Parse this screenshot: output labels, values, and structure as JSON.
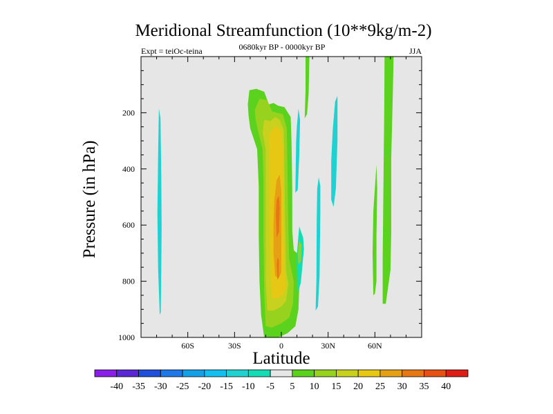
{
  "chart_data": {
    "type": "contour",
    "title": "Meridional Streamfunction (10**9kg/m-2)",
    "subtitle": "0680kyr BP - 0000kyr BP",
    "left_annotation": "Expt = teiOc-teina",
    "right_annotation": "JJA",
    "xlabel": "Latitude",
    "ylabel": "Pressure (in hPa)",
    "xlim": [
      -90,
      90
    ],
    "ylim": [
      1000,
      0
    ],
    "x_ticks": [
      {
        "value": -60,
        "label": "60S"
      },
      {
        "value": -30,
        "label": "30S"
      },
      {
        "value": 0,
        "label": "0"
      },
      {
        "value": 30,
        "label": "30N"
      },
      {
        "value": 60,
        "label": "60N"
      }
    ],
    "y_ticks": [
      {
        "value": 200,
        "label": "200"
      },
      {
        "value": 400,
        "label": "400"
      },
      {
        "value": 600,
        "label": "600"
      },
      {
        "value": 800,
        "label": "800"
      },
      {
        "value": 1000,
        "label": "1000"
      }
    ],
    "colorbar": {
      "labels": [
        "-40",
        "-35",
        "-30",
        "-25",
        "-20",
        "-15",
        "-10",
        "-5",
        "5",
        "10",
        "15",
        "20",
        "25",
        "30",
        "35",
        "40"
      ],
      "colors": [
        "#8a1ee6",
        "#5a28d2",
        "#1e50dc",
        "#1e78e6",
        "#14a0e6",
        "#14bef0",
        "#1ed2d2",
        "#14dcb4",
        "#e6e6e6",
        "#5ad21e",
        "#96d21e",
        "#c8d21e",
        "#e6c814",
        "#e6a014",
        "#e67814",
        "#e65014",
        "#dc1e14"
      ]
    },
    "regions": [
      {
        "name": "contour-fill-sh-high-lat",
        "level": "-10",
        "color": "#1ed2d2",
        "points": [
          [
            -78,
            920
          ],
          [
            -79,
            760
          ],
          [
            -79.5,
            560
          ],
          [
            -79,
            340
          ],
          [
            -78.5,
            185
          ],
          [
            -77.5,
            220
          ],
          [
            -77,
            420
          ],
          [
            -76.8,
            610
          ],
          [
            -77,
            760
          ],
          [
            -77.3,
            910
          ]
        ]
      },
      {
        "name": "contour-fill-eq-5",
        "level": "5",
        "color": "#5ad21e",
        "points": [
          [
            -11,
            1000
          ],
          [
            -13,
            920
          ],
          [
            -14,
            800
          ],
          [
            -14.5,
            640
          ],
          [
            -14.5,
            460
          ],
          [
            -15.5,
            330
          ],
          [
            -20,
            255
          ],
          [
            -21,
            210
          ],
          [
            -21.5,
            170
          ],
          [
            -20.5,
            120
          ],
          [
            -16,
            115
          ],
          [
            -11,
            125
          ],
          [
            -8,
            170
          ],
          [
            -5,
            165
          ],
          [
            -2,
            175
          ],
          [
            2,
            180
          ],
          [
            6,
            215
          ],
          [
            6.5,
            300
          ],
          [
            7,
            470
          ],
          [
            7,
            620
          ],
          [
            8,
            690
          ],
          [
            10,
            700
          ],
          [
            14,
            640
          ],
          [
            12,
            720
          ],
          [
            11.5,
            820
          ],
          [
            11,
            900
          ],
          [
            9,
            960
          ],
          [
            4,
            985
          ],
          [
            -2,
            1000
          ],
          [
            -8,
            1005
          ]
        ]
      },
      {
        "name": "contour-fill-eq-10",
        "level": "10",
        "color": "#96d21e",
        "points": [
          [
            -10,
            960
          ],
          [
            -11,
            840
          ],
          [
            -11.5,
            640
          ],
          [
            -11.5,
            440
          ],
          [
            -12,
            330
          ],
          [
            -15,
            265
          ],
          [
            -16.5,
            225
          ],
          [
            -17,
            190
          ],
          [
            -14,
            150
          ],
          [
            -9,
            155
          ],
          [
            -6,
            195
          ],
          [
            -3,
            200
          ],
          [
            1,
            205
          ],
          [
            3.5,
            255
          ],
          [
            4,
            420
          ],
          [
            4.5,
            600
          ],
          [
            5,
            720
          ],
          [
            6.5,
            760
          ],
          [
            8,
            800
          ],
          [
            7.5,
            880
          ],
          [
            5,
            930
          ],
          [
            0,
            950
          ],
          [
            -6,
            965
          ]
        ]
      },
      {
        "name": "contour-fill-eq-15",
        "level": "15",
        "color": "#c8d21e",
        "points": [
          [
            -9,
            905
          ],
          [
            -10,
            800
          ],
          [
            -10,
            620
          ],
          [
            -10,
            450
          ],
          [
            -10,
            330
          ],
          [
            -12,
            270
          ],
          [
            -11,
            225
          ],
          [
            -7,
            230
          ],
          [
            -4,
            215
          ],
          [
            -1,
            225
          ],
          [
            1.5,
            260
          ],
          [
            2,
            420
          ],
          [
            2.5,
            620
          ],
          [
            3,
            760
          ],
          [
            4.5,
            810
          ],
          [
            3,
            870
          ],
          [
            0,
            890
          ],
          [
            -5,
            905
          ]
        ]
      },
      {
        "name": "contour-fill-eq-20",
        "level": "20",
        "color": "#e6c814",
        "points": [
          [
            -6,
            860
          ],
          [
            -7,
            760
          ],
          [
            -7.5,
            620
          ],
          [
            -7.5,
            460
          ],
          [
            -7.5,
            330
          ],
          [
            -8,
            280
          ],
          [
            -4,
            245
          ],
          [
            0,
            265
          ],
          [
            1,
            340
          ],
          [
            1,
            480
          ],
          [
            1.5,
            640
          ],
          [
            2,
            760
          ],
          [
            3,
            820
          ],
          [
            1,
            850
          ],
          [
            -2,
            860
          ]
        ]
      },
      {
        "name": "contour-fill-eq-25",
        "level": "25",
        "color": "#e6a014",
        "points": [
          [
            -4,
            780
          ],
          [
            -5,
            700
          ],
          [
            -5,
            600
          ],
          [
            -4.5,
            510
          ],
          [
            -3,
            440
          ],
          [
            -1,
            420
          ],
          [
            0,
            480
          ],
          [
            0,
            580
          ],
          [
            0,
            700
          ],
          [
            0,
            770
          ],
          [
            -2,
            790
          ]
        ]
      },
      {
        "name": "contour-fill-eq-30",
        "level": "30",
        "color": "#e67814",
        "points": [
          [
            -3,
            645
          ],
          [
            -3.5,
            560
          ],
          [
            -3,
            510
          ],
          [
            -1.5,
            495
          ],
          [
            -1,
            540
          ],
          [
            -1.5,
            625
          ]
        ]
      },
      {
        "name": "contour-fill-eq-30b",
        "level": "30",
        "color": "#e67814",
        "points": [
          [
            -2.5,
            795
          ],
          [
            -3,
            740
          ],
          [
            -2.5,
            715
          ],
          [
            -1.5,
            725
          ],
          [
            -1.5,
            785
          ]
        ]
      },
      {
        "name": "contour-fill-eq-near",
        "level": "-5",
        "color": "#14dcb4",
        "points": [
          [
            10,
            700
          ],
          [
            11.5,
            605
          ],
          [
            14,
            645
          ],
          [
            14.5,
            685
          ],
          [
            12.5,
            805
          ],
          [
            10.5,
            845
          ]
        ]
      },
      {
        "name": "contour-fill-eq-near-b",
        "level": "10",
        "color": "#96d21e",
        "points": [
          [
            10.5,
            700
          ],
          [
            11.5,
            655
          ],
          [
            13,
            670
          ],
          [
            12.5,
            730
          ],
          [
            11,
            740
          ]
        ]
      },
      {
        "name": "contour-fill-high-strip-left",
        "level": "-10",
        "color": "#1ed2d2",
        "points": [
          [
            9,
            485
          ],
          [
            9.5,
            300
          ],
          [
            10,
            245
          ],
          [
            11,
            185
          ],
          [
            12,
            225
          ],
          [
            11.5,
            355
          ],
          [
            10.5,
            475
          ]
        ]
      },
      {
        "name": "contour-fill-high-strip-mid",
        "level": "5",
        "color": "#5ad21e",
        "points": [
          [
            15,
            220
          ],
          [
            15.5,
            120
          ],
          [
            15.5,
            0
          ],
          [
            18,
            0
          ],
          [
            17.5,
            130
          ],
          [
            16.5,
            205
          ]
        ]
      },
      {
        "name": "contour-fill-nh-20",
        "level": "-10",
        "color": "#1ed2d2",
        "points": [
          [
            22,
            905
          ],
          [
            22.5,
            790
          ],
          [
            22.7,
            580
          ],
          [
            23,
            470
          ],
          [
            24,
            430
          ],
          [
            25,
            460
          ],
          [
            25,
            560
          ],
          [
            24.5,
            780
          ],
          [
            23.5,
            890
          ]
        ]
      },
      {
        "name": "contour-fill-nh-30",
        "level": "-10",
        "color": "#1ed2d2",
        "points": [
          [
            32,
            510
          ],
          [
            32,
            370
          ],
          [
            33,
            260
          ],
          [
            34.5,
            160
          ],
          [
            36,
            140
          ],
          [
            36,
            300
          ],
          [
            35,
            470
          ],
          [
            33.5,
            535
          ]
        ]
      },
      {
        "name": "contour-fill-nh-60a",
        "level": "5",
        "color": "#5ad21e",
        "points": [
          [
            59,
            850
          ],
          [
            58.5,
            700
          ],
          [
            59,
            550
          ],
          [
            60,
            470
          ],
          [
            61,
            385
          ],
          [
            61.5,
            470
          ],
          [
            61,
            640
          ],
          [
            61,
            800
          ],
          [
            60,
            845
          ]
        ]
      },
      {
        "name": "contour-fill-nh-63",
        "level": "5",
        "color": "#5ad21e",
        "points": [
          [
            65,
            880
          ],
          [
            65,
            720
          ],
          [
            65.5,
            460
          ],
          [
            66,
            180
          ],
          [
            66.2,
            0
          ],
          [
            72,
            0
          ],
          [
            71.5,
            130
          ],
          [
            70.5,
            360
          ],
          [
            70.5,
            620
          ],
          [
            70,
            760
          ],
          [
            67,
            880
          ]
        ]
      }
    ]
  }
}
